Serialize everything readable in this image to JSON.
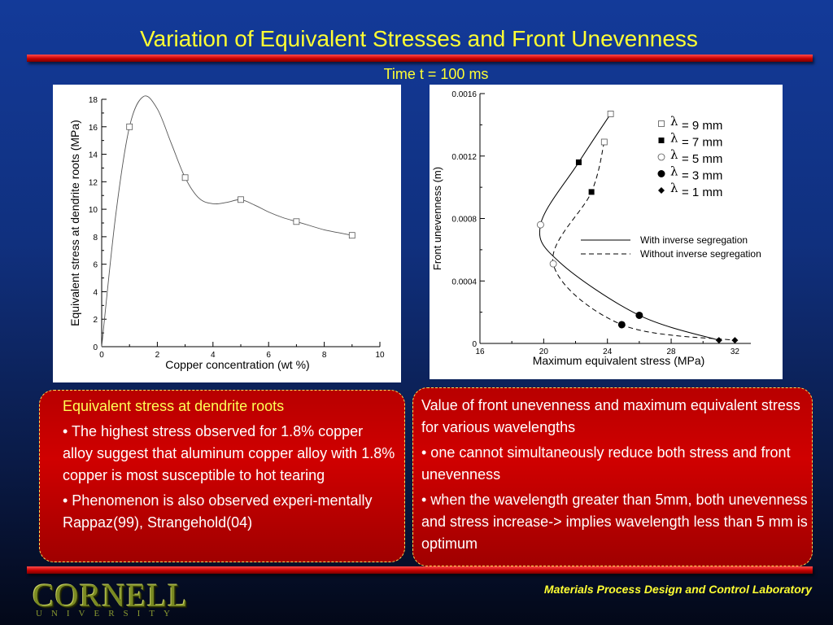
{
  "slide": {
    "title": "Variation of Equivalent Stresses and Front Unevenness",
    "subtitle": "Time t = 100 ms",
    "footer": "Materials Process Design and Control Laboratory",
    "logo_text": "CORNELL",
    "logo_subtext": "UNIVERSITY",
    "colors": {
      "title": "#ffff33",
      "bar": "#cc0000",
      "box": "#c00000",
      "background": "#10307e"
    }
  },
  "chart_data": [
    {
      "type": "line",
      "title": "",
      "xlabel": "Copper concentration (wt %)",
      "ylabel": "Equivalent stress at dendrite roots (MPa)",
      "xlim": [
        0,
        10
      ],
      "ylim": [
        0,
        18
      ],
      "xticks": [
        0,
        2,
        4,
        6,
        8,
        10
      ],
      "yticks": [
        0,
        2,
        4,
        6,
        8,
        10,
        12,
        14,
        16,
        18
      ],
      "series": [
        {
          "x": [
            1,
            3,
            5,
            7,
            9
          ],
          "y": [
            16.0,
            12.3,
            10.7,
            9.1,
            8.1
          ],
          "marker": "open-square"
        }
      ],
      "curve": {
        "x": [
          0,
          0.5,
          1,
          1.5,
          2,
          2.5,
          3,
          3.5,
          4,
          4.5,
          5,
          5.5,
          6,
          6.5,
          7,
          7.5,
          8,
          8.5,
          9
        ],
        "y": [
          0,
          9.5,
          16.0,
          18.2,
          17.3,
          14.8,
          12.3,
          10.8,
          10.4,
          10.5,
          10.7,
          10.3,
          9.8,
          9.4,
          9.1,
          8.8,
          8.5,
          8.3,
          8.1
        ]
      },
      "grid": false,
      "legend": "none"
    },
    {
      "type": "scatter",
      "title": "",
      "xlabel": "Maximum equivalent stress (MPa)",
      "ylabel": "Front unevenness (m)",
      "xlim": [
        16,
        33
      ],
      "ylim": [
        0,
        0.0016
      ],
      "xticks": [
        16,
        20,
        24,
        28,
        32
      ],
      "yticks": [
        "0",
        "0.0004",
        "0.0008",
        "0.0012",
        "0.0016"
      ],
      "ytick_values": [
        0,
        0.0004,
        0.0008,
        0.0012,
        0.0016
      ],
      "series": [
        {
          "name": "With inverse segregation",
          "style": "solid",
          "x": [
            24.2,
            22.2,
            19.8,
            21.0,
            26.0,
            31.0
          ],
          "y": [
            0.00147,
            0.00116,
            0.00076,
            0.00052,
            0.00018,
            2e-05
          ],
          "points": [
            {
              "x": 24.2,
              "y": 0.00147,
              "marker": "open-square"
            },
            {
              "x": 22.2,
              "y": 0.00116,
              "marker": "filled-square"
            },
            {
              "x": 19.8,
              "y": 0.00076,
              "marker": "open-circle"
            },
            {
              "x": 26.0,
              "y": 0.00018,
              "marker": "filled-circle"
            },
            {
              "x": 31.0,
              "y": 2e-05,
              "marker": "filled-diamond"
            }
          ]
        },
        {
          "name": "Without inverse segregation",
          "style": "dashed",
          "x": [
            23.8,
            23.0,
            20.6,
            24.9,
            32.0
          ],
          "y": [
            0.00129,
            0.00097,
            0.00051,
            0.00012,
            2e-05
          ],
          "points": [
            {
              "x": 23.8,
              "y": 0.00129,
              "marker": "open-square"
            },
            {
              "x": 23.0,
              "y": 0.00097,
              "marker": "filled-square"
            },
            {
              "x": 20.6,
              "y": 0.00051,
              "marker": "open-circle"
            },
            {
              "x": 24.9,
              "y": 0.00012,
              "marker": "filled-circle"
            },
            {
              "x": 32.0,
              "y": 2e-05,
              "marker": "filled-diamond"
            }
          ]
        }
      ],
      "marker_legend": [
        {
          "marker": "open-square",
          "lambda": "λ",
          "text": "= 9 mm"
        },
        {
          "marker": "filled-square",
          "lambda": "λ",
          "text": "= 7 mm"
        },
        {
          "marker": "open-circle",
          "lambda": "λ",
          "text": "= 5 mm"
        },
        {
          "marker": "filled-circle",
          "lambda": "λ",
          "text": "= 3 mm"
        },
        {
          "marker": "filled-diamond",
          "lambda": "λ",
          "text": "= 1 mm"
        }
      ],
      "grid": false,
      "legend": "right"
    }
  ],
  "left_box": {
    "heading": "Equivalent stress at dendrite roots",
    "bullets": [
      "• The highest stress observed for 1.8% copper alloy suggest that aluminum copper alloy with 1.8% copper is most susceptible to hot tearing",
      "• Phenomenon is also observed experi-mentally  Rappaz(99), Strangehold(04)"
    ]
  },
  "right_box": {
    "heading": "Value of front unevenness and maximum equivalent stress for various wavelengths",
    "bullets": [
      "• one cannot simultaneously reduce both stress and front unevenness",
      "• when the wavelength greater than 5mm, both unevenness and stress increase-> implies wavelength less than 5 mm is optimum"
    ]
  }
}
